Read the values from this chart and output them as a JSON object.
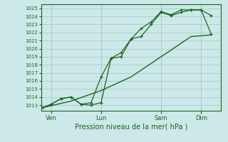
{
  "bg_color": "#cce8e8",
  "grid_color": "#aacccc",
  "line_color": "#1a6620",
  "title": "Pression niveau de la mer( hPa )",
  "ylabel_values": [
    1013,
    1014,
    1015,
    1016,
    1017,
    1018,
    1019,
    1020,
    1021,
    1022,
    1023,
    1024,
    1025
  ],
  "ylim": [
    1012.3,
    1025.5
  ],
  "x_tick_labels": [
    "Ven",
    "Lun",
    "Sam",
    "Dim"
  ],
  "x_tick_positions": [
    0.5,
    3.0,
    6.0,
    8.0
  ],
  "xlim": [
    0,
    9.0
  ],
  "series1_x": [
    0.1,
    0.5,
    1.0,
    1.5,
    2.0,
    2.5,
    3.0,
    3.5,
    4.0,
    4.5,
    5.0,
    5.5,
    6.0,
    6.5,
    7.0,
    7.5,
    8.0,
    8.5
  ],
  "series1_y": [
    1012.7,
    1013.1,
    1013.8,
    1014.0,
    1013.1,
    1013.0,
    1013.3,
    1018.8,
    1019.0,
    1021.2,
    1021.5,
    1023.0,
    1024.5,
    1024.1,
    1024.5,
    1024.8,
    1024.8,
    1021.8
  ],
  "series2_x": [
    0.1,
    0.5,
    1.0,
    1.5,
    2.0,
    2.5,
    3.0,
    3.5,
    4.0,
    4.5,
    5.0,
    5.5,
    6.0,
    6.5,
    7.0,
    7.5,
    8.0,
    8.5
  ],
  "series2_y": [
    1012.7,
    1013.1,
    1013.8,
    1014.0,
    1013.1,
    1013.3,
    1016.5,
    1018.8,
    1019.5,
    1021.2,
    1022.5,
    1023.3,
    1024.6,
    1024.2,
    1024.8,
    1024.8,
    1024.8,
    1024.1
  ],
  "series3_x": [
    0.1,
    1.5,
    3.0,
    4.5,
    6.0,
    7.5,
    8.5
  ],
  "series3_y": [
    1012.7,
    1013.5,
    1014.8,
    1016.5,
    1019.0,
    1021.5,
    1021.7
  ]
}
